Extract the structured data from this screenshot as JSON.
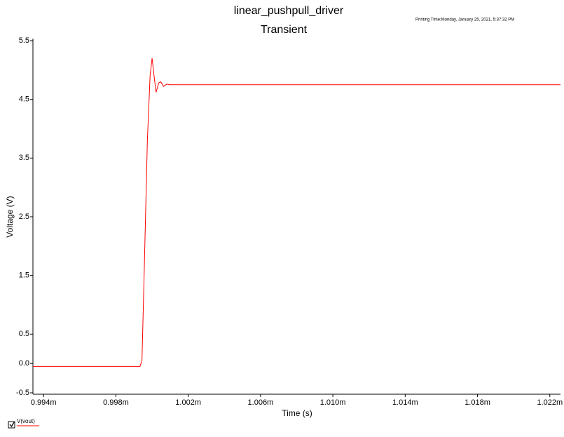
{
  "chart_data": {
    "type": "line",
    "title": "linear_pushpull_driver",
    "subtitle": "Transient",
    "annotation": "Printing Time:Monday, January 25, 2021, 5:37:32 PM",
    "x_label": "Time (s)",
    "y_label": "Voltage (V)",
    "x": [
      0.00099341,
      0.00099933,
      0.00099944,
      0.00099956,
      0.00099974,
      0.00099989,
      0.001,
      0.00100011,
      0.00100022,
      0.00100037,
      0.00100048,
      0.00100063,
      0.00100081,
      0.001001,
      0.00102259
    ],
    "series": [
      {
        "name": "V(vout)",
        "color": "#ff0000",
        "values": [
          -0.05,
          -0.05,
          0.05,
          1.5,
          3.8,
          4.9,
          5.2,
          4.9,
          4.62,
          4.78,
          4.8,
          4.72,
          4.76,
          4.75,
          4.75
        ]
      }
    ],
    "xlim": [
      0.00099341,
      0.00102259
    ],
    "xticks": [
      {
        "value": 0.000994,
        "label": "0.994m"
      },
      {
        "value": 0.000998,
        "label": "0.998m"
      },
      {
        "value": 0.001002,
        "label": "1.002m"
      },
      {
        "value": 0.001006,
        "label": "1.006m"
      },
      {
        "value": 0.00101,
        "label": "1.010m"
      },
      {
        "value": 0.001014,
        "label": "1.014m"
      },
      {
        "value": 0.001018,
        "label": "1.018m"
      },
      {
        "value": 0.001022,
        "label": "1.022m"
      }
    ],
    "ylim": [
      -0.5,
      5.5
    ],
    "yticks": [
      5.5,
      4.5,
      3.5,
      2.5,
      1.5,
      0.5,
      {
        "value": 0,
        "label": "0.0"
      },
      -0.5
    ],
    "grid": false
  }
}
